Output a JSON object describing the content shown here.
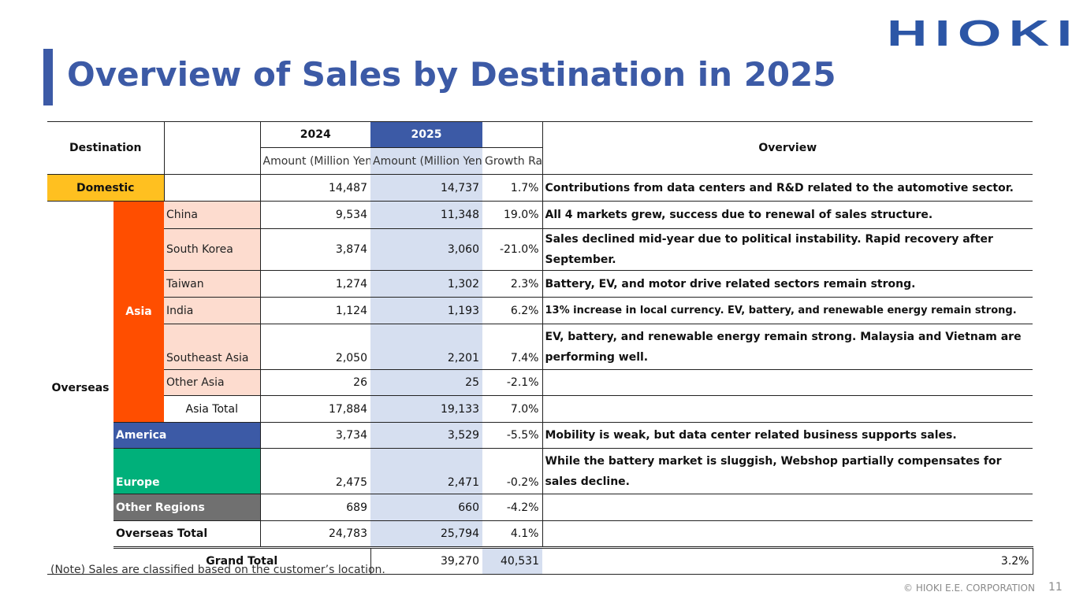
{
  "title": "Overview of Sales by Destination in 2025",
  "logo": "HIOKI",
  "colors": {
    "accent": "#3c5aa6",
    "domestic": "#ffc020",
    "asia": "#ff4e00",
    "asia_rows": "#fddccf",
    "america": "#3c5aa6",
    "europe": "#00b07a",
    "other_regions": "#707070",
    "col_2025": "#d6dff0"
  },
  "header": {
    "destination": "Destination",
    "year_2024": "2024",
    "year_2025": "2025",
    "amount_2024": "Amount (Million Yen)",
    "amount_2025": "Amount (Million Yen)",
    "growth": "Growth Rate",
    "overview": "Overview"
  },
  "domestic": {
    "label": "Domestic",
    "v2024": "14,487",
    "v2025": "14,737",
    "growth": "1.7%",
    "overview": "Contributions from data centers and R&D related to the automotive sector."
  },
  "overseas_label": "Overseas",
  "asia_label": "Asia",
  "asia_rows": [
    {
      "label": "China",
      "v2024": "9,534",
      "v2025": "11,348",
      "growth": "19.0%",
      "overview": "All 4 markets grew, success due to renewal of sales structure."
    },
    {
      "label": "South Korea",
      "v2024": "3,874",
      "v2025": "3,060",
      "growth": "-21.0%",
      "overview": "Sales declined mid-year due to political instability. Rapid recovery after September."
    },
    {
      "label": "Taiwan",
      "v2024": "1,274",
      "v2025": "1,302",
      "growth": "2.3%",
      "overview": "Battery, EV, and motor drive related sectors remain strong."
    },
    {
      "label": "India",
      "v2024": "1,124",
      "v2025": "1,193",
      "growth": "6.2%",
      "overview": "13% increase in local currency. EV, battery, and renewable energy remain strong."
    },
    {
      "label": "Southeast Asia",
      "v2024": "2,050",
      "v2025": "2,201",
      "growth": "7.4%",
      "overview": "EV, battery, and renewable energy remain strong. Malaysia and Vietnam are performing well."
    },
    {
      "label": "Other Asia",
      "v2024": "26",
      "v2025": "25",
      "growth": "-2.1%",
      "overview": ""
    },
    {
      "label": "Asia Total",
      "v2024": "17,884",
      "v2025": "19,133",
      "growth": "7.0%",
      "overview": ""
    }
  ],
  "america": {
    "label": "America",
    "v2024": "3,734",
    "v2025": "3,529",
    "growth": "-5.5%",
    "overview": "Mobility is weak, but data center related business supports sales."
  },
  "europe": {
    "label": "Europe",
    "v2024": "2,475",
    "v2025": "2,471",
    "growth": "-0.2%",
    "overview": "While the battery market is sluggish, Webshop partially compensates for sales decline."
  },
  "other_regions": {
    "label": "Other Regions",
    "v2024": "689",
    "v2025": "660",
    "growth": "-4.2%",
    "overview": ""
  },
  "overseas_total": {
    "label": "Overseas Total",
    "v2024": "24,783",
    "v2025": "25,794",
    "growth": "4.1%",
    "overview": ""
  },
  "grand_total": {
    "label": "Grand Total",
    "v2024": "39,270",
    "v2025": "40,531",
    "growth": "3.2%",
    "overview": ""
  },
  "note": "(Note) Sales are classified based on the customer’s location.",
  "footer": "© HIOKI E.E. CORPORATION",
  "page_number": "11"
}
